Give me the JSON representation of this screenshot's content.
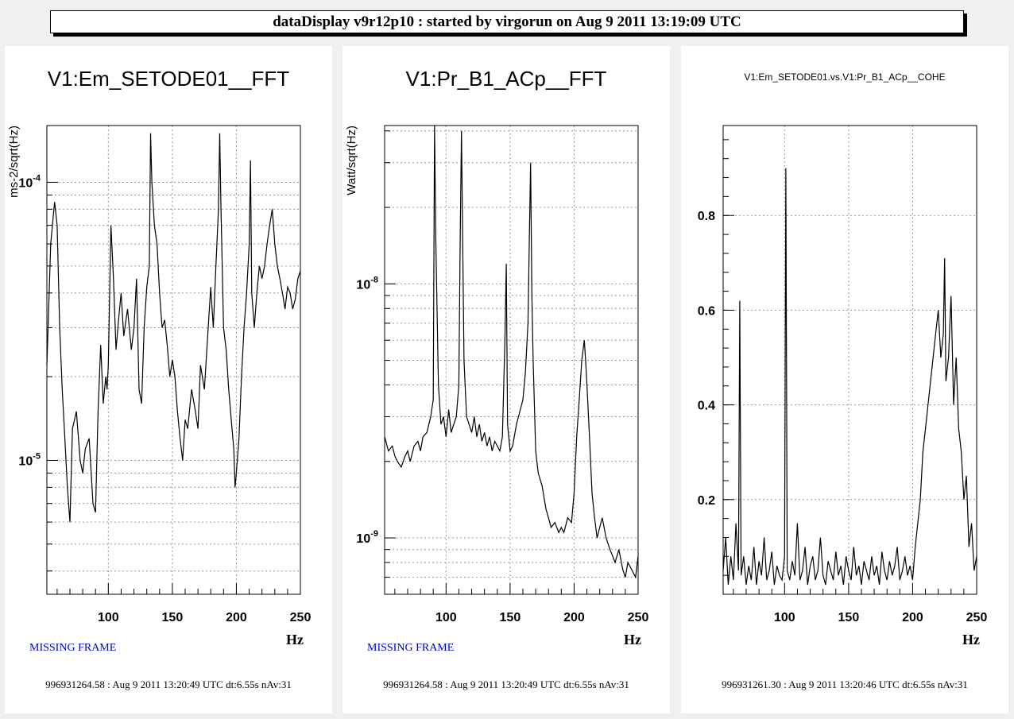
{
  "window_title": "dataDisplay v9r12p10 : started by virgorun on Aug  9 2011 13:19:09 UTC",
  "colors": {
    "trace": "#000000",
    "missing_frame": "#0000cc",
    "background": "#f0f0f0",
    "grid": "#999999"
  },
  "panels": [
    {
      "title": "V1:Em_SETODE01__FFT",
      "status": "MISSING FRAME",
      "footer": "996931264.58 : Aug  9 2011 13:20:49 UTC dt:6.55s nAv:31"
    },
    {
      "title": "V1:Pr_B1_ACp__FFT",
      "status": "MISSING FRAME",
      "footer": "996931264.58 : Aug  9 2011 13:20:49 UTC dt:6.55s nAv:31"
    },
    {
      "title": "V1:Em_SETODE01.vs.V1:Pr_B1_ACp__COHE",
      "status": "",
      "footer": "996931261.30 : Aug  9 2011 13:20:46 UTC dt:6.55s nAv:31"
    }
  ],
  "chart_data": [
    {
      "type": "line",
      "title": "V1:Em_SETODE01__FFT",
      "xlabel": "Hz",
      "ylabel": "ms-2/sqrt(Hz)",
      "xlim": [
        52,
        250
      ],
      "ylim": [
        3.3e-06,
        0.00016
      ],
      "yscale": "log",
      "grid": true,
      "xticks": [
        {
          "value": 100,
          "label": "100"
        },
        {
          "value": 150,
          "label": "150"
        },
        {
          "value": 200,
          "label": "200"
        },
        {
          "value": 250,
          "label": "250"
        }
      ],
      "yticks": [
        {
          "value": 1e-05,
          "mant": "10",
          "exp": "-5"
        },
        {
          "value": 0.0001,
          "mant": "10",
          "exp": "-4"
        }
      ],
      "x": [
        52,
        55,
        58,
        60,
        62,
        64,
        66,
        68,
        70,
        72,
        75,
        78,
        80,
        82,
        85,
        88,
        90,
        92,
        94,
        96,
        98,
        99,
        100,
        102,
        104,
        106,
        108,
        110,
        112,
        115,
        118,
        120,
        122,
        124,
        126,
        128,
        130,
        132,
        133,
        134,
        136,
        138,
        140,
        142,
        144,
        146,
        148,
        150,
        152,
        154,
        156,
        158,
        160,
        162,
        165,
        168,
        170,
        172,
        175,
        178,
        180,
        182,
        184,
        186,
        187,
        188,
        190,
        192,
        194,
        196,
        198,
        199,
        200,
        202,
        204,
        206,
        208,
        210,
        211,
        212,
        214,
        216,
        218,
        220,
        222,
        224,
        226,
        228,
        230,
        232,
        234,
        236,
        238,
        240,
        242,
        244,
        246,
        248,
        250
      ],
      "y": [
        2.2e-05,
        6e-05,
        8.5e-05,
        7e-05,
        3e-05,
        1.8e-05,
        1.2e-05,
        8e-06,
        6e-06,
        1.3e-05,
        1.5e-05,
        1e-05,
        9e-06,
        1.1e-05,
        1.2e-05,
        7e-06,
        6.5e-06,
        1.5e-05,
        2.6e-05,
        1.6e-05,
        2e-05,
        1.8e-05,
        2.2e-05,
        7e-05,
        4.5e-05,
        2.5e-05,
        3.2e-05,
        4e-05,
        2.8e-05,
        3.5e-05,
        2.5e-05,
        3e-05,
        4.5e-05,
        1.8e-05,
        1.6e-05,
        3e-05,
        4.2e-05,
        5e-05,
        0.00015,
        0.0001,
        7e-05,
        6e-05,
        4e-05,
        3e-05,
        3.2e-05,
        2.6e-05,
        2e-05,
        2.3e-05,
        2e-05,
        1.5e-05,
        1.2e-05,
        1e-05,
        1.4e-05,
        1.3e-05,
        1.8e-05,
        1.5e-05,
        1.3e-05,
        2.2e-05,
        1.8e-05,
        3e-05,
        4.2e-05,
        3e-05,
        5e-05,
        8e-05,
        0.00015,
        8e-05,
        3e-05,
        2.5e-05,
        1.8e-05,
        1.4e-05,
        1.1e-05,
        8e-06,
        9e-06,
        1.2e-05,
        2e-05,
        3e-05,
        4e-05,
        6e-05,
        0.00012,
        4e-05,
        3e-05,
        4e-05,
        5e-05,
        4.5e-05,
        5e-05,
        6e-05,
        7e-05,
        8e-05,
        6e-05,
        5e-05,
        4.5e-05,
        4e-05,
        3.5e-05,
        4.2e-05,
        4e-05,
        3.5e-05,
        3.8e-05,
        4.5e-05,
        4.8e-05
      ]
    },
    {
      "type": "line",
      "title": "V1:Pr_B1_ACp__FFT",
      "xlabel": "Hz",
      "ylabel": "Watt/sqrt(Hz)",
      "xlim": [
        52,
        250
      ],
      "ylim": [
        6e-10,
        4.2e-08
      ],
      "yscale": "log",
      "grid": true,
      "xticks": [
        {
          "value": 100,
          "label": "100"
        },
        {
          "value": 150,
          "label": "150"
        },
        {
          "value": 200,
          "label": "200"
        },
        {
          "value": 250,
          "label": "250"
        }
      ],
      "yticks": [
        {
          "value": 1e-09,
          "mant": "10",
          "exp": "-9"
        },
        {
          "value": 1e-08,
          "mant": "10",
          "exp": "-8"
        }
      ],
      "x": [
        52,
        55,
        58,
        60,
        62,
        65,
        68,
        70,
        72,
        75,
        78,
        80,
        82,
        85,
        88,
        90,
        91,
        92,
        94,
        96,
        98,
        100,
        102,
        104,
        106,
        108,
        110,
        111,
        112,
        114,
        116,
        118,
        120,
        122,
        124,
        126,
        128,
        130,
        132,
        134,
        136,
        138,
        140,
        142,
        144,
        146,
        147,
        148,
        150,
        152,
        155,
        158,
        160,
        162,
        164,
        165,
        166,
        167,
        168,
        170,
        172,
        175,
        178,
        180,
        182,
        185,
        188,
        190,
        192,
        195,
        198,
        200,
        202,
        204,
        206,
        208,
        209,
        210,
        212,
        214,
        216,
        218,
        220,
        222,
        225,
        228,
        230,
        232,
        235,
        238,
        240,
        242,
        245,
        248,
        250
      ],
      "y": [
        2.5e-09,
        2.2e-09,
        2.3e-09,
        2.1e-09,
        2e-09,
        1.9e-09,
        2.1e-09,
        2.2e-09,
        2e-09,
        2.3e-09,
        2.4e-09,
        2.2e-09,
        2.5e-09,
        2.6e-09,
        3e-09,
        3.5e-09,
        4.2e-08,
        1.5e-08,
        4e-09,
        2.8e-09,
        3e-09,
        2.5e-09,
        3.2e-09,
        2.6e-09,
        2.8e-09,
        3e-09,
        4e-09,
        1.5e-08,
        4e-08,
        5e-09,
        3e-09,
        2.8e-09,
        2.6e-09,
        3e-09,
        2.5e-09,
        2.8e-09,
        2.4e-09,
        2.6e-09,
        2.3e-09,
        2.5e-09,
        2.2e-09,
        2.4e-09,
        2.3e-09,
        2.2e-09,
        2.5e-09,
        6e-09,
        1.2e-08,
        2.8e-09,
        2.2e-09,
        2.3e-09,
        2.8e-09,
        3.2e-09,
        3.5e-09,
        4.5e-09,
        7e-09,
        1.5e-08,
        3e-08,
        9e-09,
        5e-09,
        2.2e-09,
        1.8e-09,
        1.6e-09,
        1.3e-09,
        1.2e-09,
        1.1e-09,
        1.15e-09,
        1.05e-09,
        1.1e-09,
        1.05e-09,
        1.2e-09,
        1.15e-09,
        1.5e-09,
        2.5e-09,
        3.5e-09,
        5e-09,
        6e-09,
        5e-09,
        4e-09,
        2.5e-09,
        1.5e-09,
        1.2e-09,
        1e-09,
        1.1e-09,
        1.2e-09,
        1e-09,
        9e-10,
        8.5e-10,
        8e-10,
        9e-10,
        7.5e-10,
        7e-10,
        8e-10,
        7.5e-10,
        7e-10,
        8.5e-10
      ]
    },
    {
      "type": "line",
      "title": "V1:Em_SETODE01.vs.V1:Pr_B1_ACp__COHE",
      "xlabel": "Hz",
      "ylabel": "",
      "xlim": [
        52,
        250
      ],
      "ylim": [
        0,
        0.99
      ],
      "yscale": "linear",
      "grid": true,
      "xticks": [
        {
          "value": 100,
          "label": "100"
        },
        {
          "value": 150,
          "label": "150"
        },
        {
          "value": 200,
          "label": "200"
        },
        {
          "value": 250,
          "label": "250"
        }
      ],
      "yticks": [
        {
          "value": 0.2,
          "label": "0.2"
        },
        {
          "value": 0.4,
          "label": "0.4"
        },
        {
          "value": 0.6,
          "label": "0.6"
        },
        {
          "value": 0.8,
          "label": "0.8"
        }
      ],
      "x": [
        52,
        54,
        56,
        58,
        60,
        62,
        64,
        65,
        66,
        68,
        70,
        72,
        74,
        76,
        78,
        80,
        82,
        84,
        86,
        88,
        90,
        92,
        94,
        96,
        98,
        100,
        101,
        102,
        104,
        106,
        108,
        110,
        112,
        114,
        116,
        118,
        120,
        122,
        124,
        126,
        128,
        130,
        132,
        134,
        136,
        138,
        140,
        142,
        144,
        146,
        148,
        150,
        152,
        154,
        156,
        158,
        160,
        162,
        164,
        166,
        168,
        170,
        172,
        174,
        176,
        178,
        180,
        182,
        184,
        186,
        188,
        190,
        192,
        194,
        196,
        198,
        200,
        202,
        204,
        206,
        208,
        210,
        212,
        214,
        216,
        218,
        220,
        222,
        224,
        225,
        226,
        228,
        230,
        232,
        234,
        236,
        238,
        240,
        242,
        244,
        246,
        248,
        250
      ],
      "y": [
        0.05,
        0.12,
        0.02,
        0.08,
        0.03,
        0.15,
        0.05,
        0.62,
        0.04,
        0.08,
        0.02,
        0.06,
        0.03,
        0.1,
        0.02,
        0.07,
        0.04,
        0.12,
        0.03,
        0.05,
        0.09,
        0.02,
        0.06,
        0.04,
        0.03,
        0.08,
        0.9,
        0.05,
        0.03,
        0.07,
        0.04,
        0.15,
        0.03,
        0.05,
        0.1,
        0.02,
        0.06,
        0.08,
        0.03,
        0.05,
        0.12,
        0.04,
        0.02,
        0.07,
        0.05,
        0.03,
        0.09,
        0.04,
        0.06,
        0.02,
        0.08,
        0.05,
        0.03,
        0.1,
        0.04,
        0.06,
        0.02,
        0.07,
        0.05,
        0.03,
        0.08,
        0.04,
        0.06,
        0.02,
        0.09,
        0.05,
        0.03,
        0.07,
        0.04,
        0.06,
        0.1,
        0.03,
        0.05,
        0.08,
        0.04,
        0.06,
        0.03,
        0.1,
        0.15,
        0.2,
        0.3,
        0.35,
        0.4,
        0.45,
        0.5,
        0.55,
        0.6,
        0.5,
        0.55,
        0.71,
        0.45,
        0.5,
        0.63,
        0.4,
        0.5,
        0.35,
        0.3,
        0.2,
        0.25,
        0.1,
        0.15,
        0.05,
        0.08
      ]
    }
  ]
}
